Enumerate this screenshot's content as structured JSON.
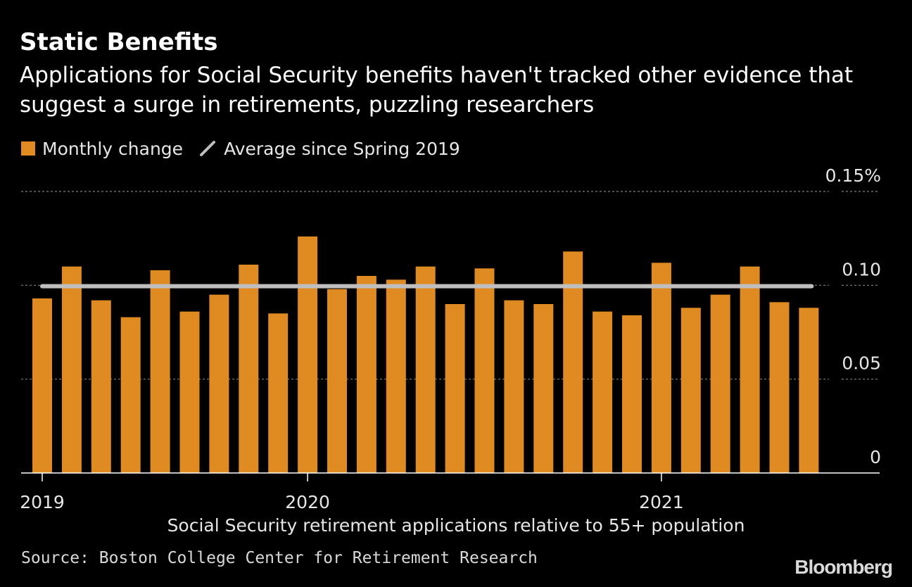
{
  "title": "Static Benefits",
  "subtitle": "Applications for Social Security benefits haven't tracked other evidence that suggest a surge in retirements, puzzling researchers",
  "legend": {
    "bar_label": "Monthly change",
    "line_label": "Average since Spring 2019"
  },
  "colors": {
    "bar": "#E08A22",
    "average_line": "#BFBFBF",
    "grid": "#808080",
    "background": "#000000"
  },
  "source": "Source: Boston College Center for Retirement Research",
  "brand": "Bloomberg",
  "chart_data": {
    "type": "bar",
    "title": "Static Benefits",
    "subtitle": "Applications for Social Security benefits haven't tracked other evidence that suggest a surge in retirements, puzzling researchers",
    "xlabel": "Social Security retirement applications relative to 55+ population",
    "ylabel": "",
    "ylim": [
      0,
      0.15
    ],
    "y_unit": "%",
    "yticks": [
      {
        "value": 0,
        "label": "0"
      },
      {
        "value": 0.05,
        "label": "0.05"
      },
      {
        "value": 0.1,
        "label": "0.10"
      },
      {
        "value": 0.15,
        "label": "0.15%"
      }
    ],
    "grid": true,
    "y_axis_side": "right",
    "legend_position": "top-left",
    "x_tick_labels": [
      {
        "label": "2019",
        "index": 0
      },
      {
        "label": "2020",
        "index": 9
      },
      {
        "label": "2021",
        "index": 21
      }
    ],
    "series": [
      {
        "name": "Monthly change",
        "type": "bar",
        "values": [
          0.093,
          0.11,
          0.092,
          0.083,
          0.108,
          0.086,
          0.095,
          0.111,
          0.085,
          0.126,
          0.098,
          0.105,
          0.103,
          0.11,
          0.09,
          0.109,
          0.092,
          0.09,
          0.118,
          0.086,
          0.084,
          0.112,
          0.088,
          0.095,
          0.11,
          0.091,
          0.088
        ]
      },
      {
        "name": "Average since Spring 2019",
        "type": "line",
        "value": 0.0995
      }
    ]
  }
}
